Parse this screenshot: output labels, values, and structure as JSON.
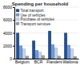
{
  "chart_data": {
    "type": "bar",
    "title": "Spending per household",
    "categories": [
      "Belgium",
      "BCR",
      "Flanders",
      "Wallonia"
    ],
    "series": [
      {
        "name": "Total transport",
        "color": "#1f4e9a",
        "values": [
          4000,
          2800,
          4300,
          4000
        ]
      },
      {
        "name": "Use of vehicles",
        "color": "#6f9ad6",
        "values": [
          2000,
          1300,
          2200,
          2100
        ]
      },
      {
        "name": "Purchase of vehicles",
        "color": "#c5d6ef",
        "values": [
          1500,
          1000,
          1700,
          1500
        ]
      },
      {
        "name": "Transport services",
        "color": "#9e9e9e",
        "values": [
          400,
          500,
          400,
          350
        ]
      }
    ],
    "ylim": [
      0,
      8000
    ],
    "yticks": [
      0,
      2000,
      4000,
      6000,
      8000
    ],
    "grid": true,
    "legend": "upper left"
  }
}
